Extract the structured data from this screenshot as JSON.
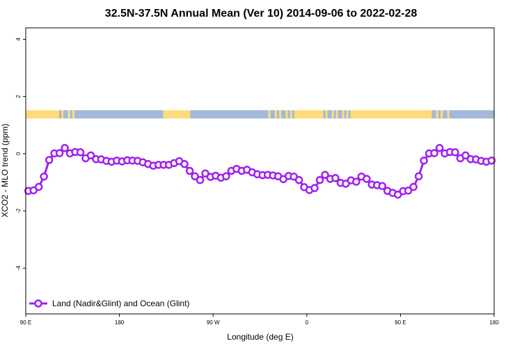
{
  "chart_data": {
    "type": "line",
    "title": "32.5N-37.5N Annual Mean (Ver 10)   2014-09-06 to 2022-02-28",
    "xlabel": "Longitude (deg E)",
    "ylabel": "XCO2 - MLO trend (ppm)",
    "xlim": [
      90,
      540
    ],
    "ylim": [
      -5.6,
      4.4
    ],
    "x_ticks": [
      {
        "value": 90,
        "label": "90 E"
      },
      {
        "value": 180,
        "label": "180"
      },
      {
        "value": 270,
        "label": "90 W"
      },
      {
        "value": 360,
        "label": "0"
      },
      {
        "value": 450,
        "label": "90 E"
      },
      {
        "value": 540,
        "label": "180"
      }
    ],
    "y_ticks": [
      {
        "value": 4,
        "label": "4"
      },
      {
        "value": 2,
        "label": "2"
      },
      {
        "value": 0,
        "label": "0"
      },
      {
        "value": -2,
        "label": "-2"
      },
      {
        "value": -4,
        "label": "-4"
      }
    ],
    "grid": false,
    "legend": {
      "placement": "bottom-left"
    },
    "series": [
      {
        "name": "Land (Nadir&Glint) and Ocean (Glint)",
        "color": "#a020f0",
        "marker": "open-circle",
        "x": [
          92.5,
          97.5,
          102.5,
          107.5,
          112.5,
          117.5,
          122.5,
          127.5,
          132.5,
          137.5,
          142.5,
          147.5,
          152.5,
          157.5,
          162.5,
          167.5,
          172.5,
          177.5,
          182.5,
          187.5,
          192.5,
          197.5,
          202.5,
          207.5,
          212.5,
          217.5,
          222.5,
          227.5,
          232.5,
          237.5,
          242.5,
          247.5,
          252.5,
          257.5,
          262.5,
          267.5,
          272.5,
          277.5,
          282.5,
          287.5,
          292.5,
          297.5,
          302.5,
          307.5,
          312.5,
          317.5,
          322.5,
          327.5,
          332.5,
          337.5,
          342.5,
          347.5,
          352.5,
          357.5,
          362.5,
          367.5,
          372.5,
          377.5,
          382.5,
          387.5,
          392.5,
          397.5,
          402.5,
          407.5,
          412.5,
          417.5,
          422.5,
          427.5,
          432.5,
          437.5,
          442.5,
          447.5,
          452.5,
          457.5,
          462.5,
          467.5,
          472.5,
          477.5,
          482.5,
          487.5,
          492.5,
          497.5,
          502.5,
          507.5,
          512.5,
          517.5,
          522.5,
          527.5,
          532.5,
          537.5
        ],
        "y": [
          -1.3,
          -1.28,
          -1.16,
          -0.8,
          -0.22,
          0.01,
          0.02,
          0.2,
          0.01,
          0.06,
          0.05,
          -0.16,
          -0.06,
          -0.19,
          -0.2,
          -0.25,
          -0.28,
          -0.24,
          -0.27,
          -0.23,
          -0.24,
          -0.25,
          -0.3,
          -0.36,
          -0.42,
          -0.39,
          -0.39,
          -0.39,
          -0.33,
          -0.26,
          -0.36,
          -0.6,
          -0.79,
          -0.92,
          -0.69,
          -0.81,
          -0.77,
          -0.84,
          -0.79,
          -0.6,
          -0.53,
          -0.6,
          -0.56,
          -0.65,
          -0.72,
          -0.75,
          -0.74,
          -0.76,
          -0.79,
          -0.89,
          -0.78,
          -0.8,
          -0.92,
          -1.17,
          -1.27,
          -1.2,
          -0.92,
          -0.74,
          -0.88,
          -0.85,
          -1.02,
          -1.05,
          -0.93,
          -0.98,
          -0.8,
          -0.88,
          -1.08,
          -1.1,
          -1.13,
          -1.3,
          -1.37,
          -1.43,
          -1.31,
          -1.29,
          -1.16,
          -0.79,
          -0.24,
          0.01,
          0.02,
          0.2,
          0.01,
          0.06,
          0.05,
          -0.16,
          -0.06,
          -0.19,
          -0.2,
          -0.25,
          -0.28,
          -0.24
        ]
      }
    ],
    "surface_band": {
      "y_range": [
        1.23,
        1.52
      ],
      "land_color": "#fedb7c",
      "ocean_color": "#a3b8db",
      "segments": [
        {
          "x0": 90,
          "x1": 122,
          "type": "land"
        },
        {
          "x0": 122,
          "x1": 139,
          "type": "mixed"
        },
        {
          "x0": 139,
          "x1": 222,
          "type": "ocean"
        },
        {
          "x0": 222,
          "x1": 248,
          "type": "land"
        },
        {
          "x0": 248,
          "x1": 323,
          "type": "ocean"
        },
        {
          "x0": 323,
          "x1": 348,
          "type": "mixed"
        },
        {
          "x0": 348,
          "x1": 374,
          "type": "land"
        },
        {
          "x0": 374,
          "x1": 402,
          "type": "mixed"
        },
        {
          "x0": 402,
          "x1": 480,
          "type": "land"
        },
        {
          "x0": 480,
          "x1": 497,
          "type": "mixed"
        },
        {
          "x0": 497,
          "x1": 540,
          "type": "ocean"
        }
      ]
    }
  }
}
